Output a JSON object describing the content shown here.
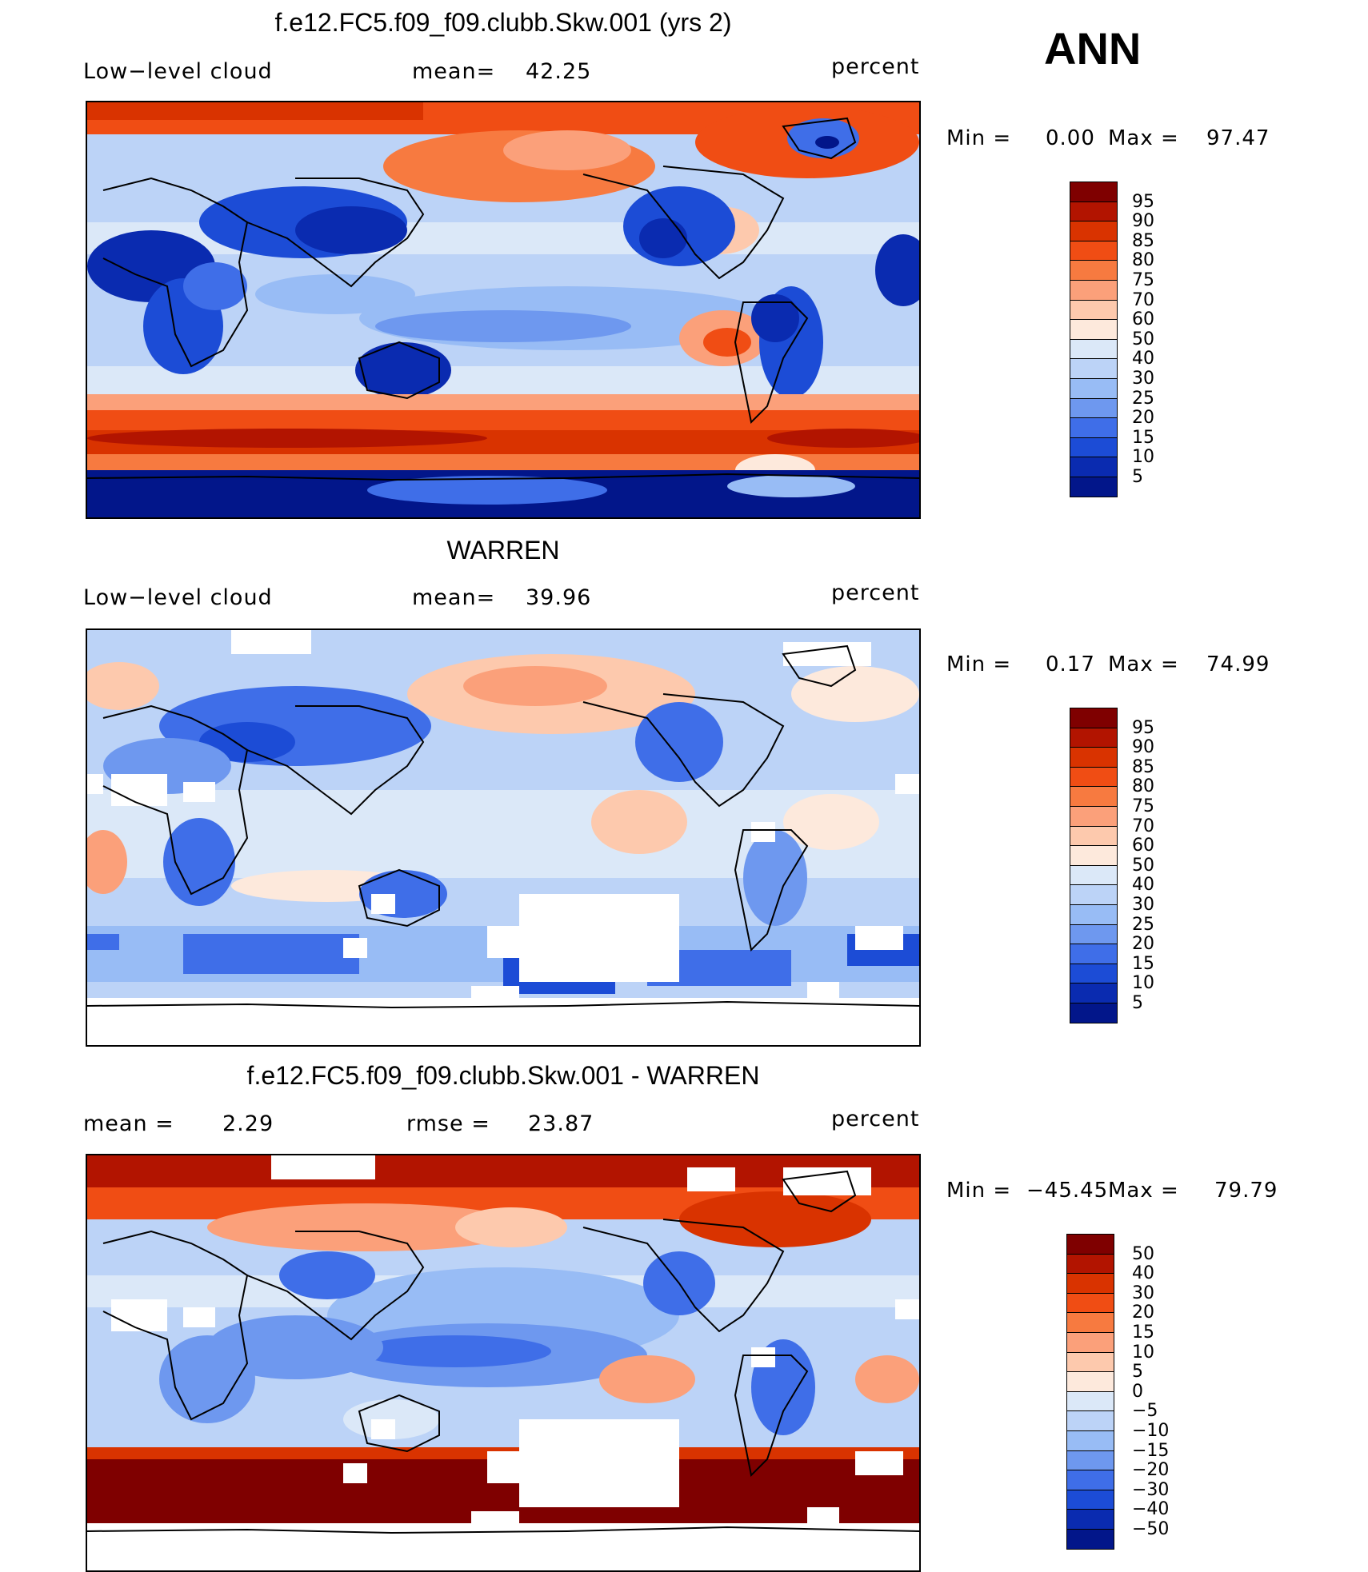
{
  "season": "ANN",
  "panels": [
    {
      "title": "f.e12.FC5.f09_f09.clubb.Skw.001 (yrs 2)",
      "left_label": "Low−level cloud",
      "mid_label": "mean=",
      "mid_value": "42.25",
      "units": "percent",
      "min_label": "Min  =",
      "min_value": "0.00",
      "max_label": "Max  =",
      "max_value": "97.47",
      "levels": [
        "95",
        "90",
        "85",
        "80",
        "75",
        "70",
        "60",
        "50",
        "40",
        "30",
        "25",
        "20",
        "15",
        "10",
        "5"
      ]
    },
    {
      "title": "WARREN",
      "left_label": "Low−level cloud",
      "mid_label": "mean=",
      "mid_value": "39.96",
      "units": "percent",
      "min_label": "Min  =",
      "min_value": "0.17",
      "max_label": "Max  =",
      "max_value": "74.99",
      "levels": [
        "95",
        "90",
        "85",
        "80",
        "75",
        "70",
        "60",
        "50",
        "40",
        "30",
        "25",
        "20",
        "15",
        "10",
        "5"
      ]
    },
    {
      "title": "f.e12.FC5.f09_f09.clubb.Skw.001 - WARREN",
      "left_label": "mean =",
      "left_value": "2.29",
      "mid_label": "rmse  =",
      "mid_value": "23.87",
      "units": "percent",
      "min_label": "Min  =",
      "min_value": "−45.45",
      "max_label": "Max  =",
      "max_value": "79.79",
      "levels": [
        "50",
        "40",
        "30",
        "20",
        "15",
        "10",
        "5",
        "0",
        "−5",
        "−10",
        "−15",
        "−20",
        "−30",
        "−40",
        "−50"
      ]
    }
  ],
  "colors": {
    "scale": [
      "#7f0000",
      "#b21400",
      "#d93300",
      "#f04d14",
      "#f77a40",
      "#fba07a",
      "#fdc9ad",
      "#fde9dc",
      "#dbe8f8",
      "#bcd3f7",
      "#98bcf5",
      "#6e98ef",
      "#3f6ee8",
      "#1c4cd6",
      "#0a2bb0",
      "#02168a"
    ],
    "missing": "#ffffff",
    "coast": "#000000"
  }
}
